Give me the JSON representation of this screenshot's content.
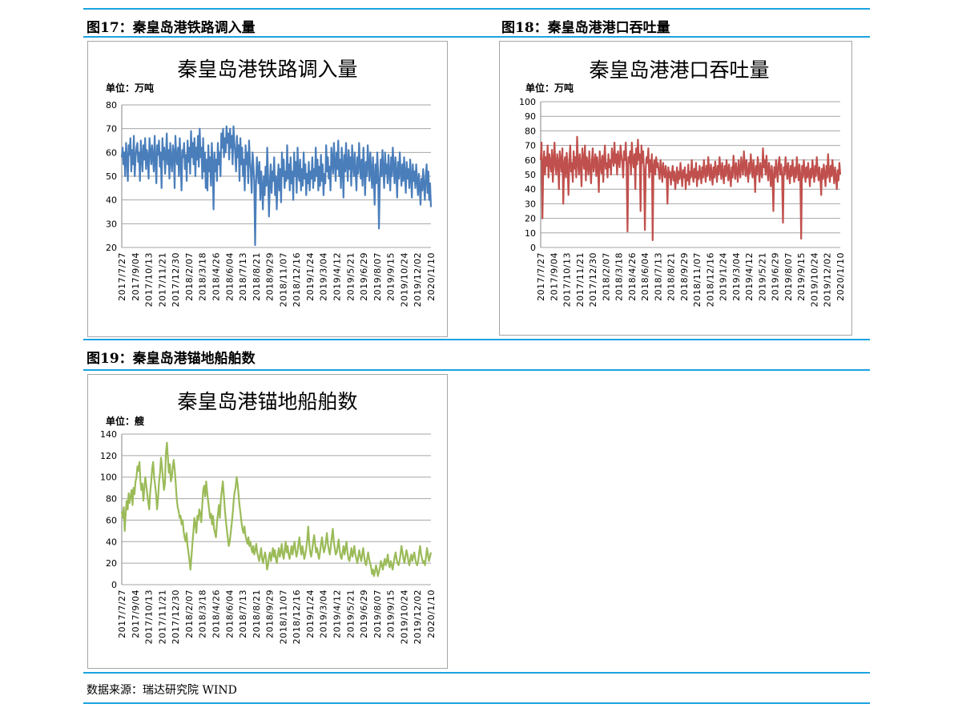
{
  "captions": {
    "fig17": "图17：秦皇岛港铁路调入量",
    "fig18": "图18：秦皇岛港港口吞吐量",
    "fig19": "图19：秦皇岛港锚地船舶数"
  },
  "source": "数据来源：瑞达研究院 WIND",
  "colors": {
    "rule": "#1ba3e0",
    "series1": "#4a7ebb",
    "series2": "#c0504d",
    "series3": "#9bbb59",
    "grid": "#a6a6a6"
  },
  "chart_data": [
    {
      "id": "rail",
      "type": "line",
      "title": "秦皇岛港铁路调入量",
      "unit_label": "单位：万吨",
      "ylim": [
        20,
        80
      ],
      "yticks": [
        20,
        30,
        40,
        50,
        60,
        70,
        80
      ],
      "grid": true,
      "x_tick_labels": [
        "2017/7/27",
        "2017/9/04",
        "2017/10/13",
        "2017/11/21",
        "2017/12/30",
        "2018/2/07",
        "2018/3/18",
        "2018/4/26",
        "2018/6/04",
        "2018/7/13",
        "2018/8/21",
        "2018/9/29",
        "2018/11/07",
        "2018/12/16",
        "2019/1/24",
        "2019/3/04",
        "2019/4/12",
        "2019/5/21",
        "2019/6/29",
        "2019/8/07",
        "2019/9/15",
        "2019/10/24",
        "2019/12/02",
        "2020/1/10"
      ],
      "series": [
        {
          "color": "#4a7ebb",
          "values": [
            58,
            62,
            55,
            60,
            50,
            64,
            57,
            48,
            63,
            59,
            66,
            52,
            61,
            55,
            67,
            50,
            58,
            62,
            64,
            56,
            60,
            48,
            65,
            58,
            52,
            63,
            57,
            66,
            53,
            61,
            58,
            49,
            66,
            60,
            55,
            63,
            58,
            52,
            67,
            56,
            47,
            63,
            59,
            65,
            54,
            60,
            45,
            66,
            57,
            62,
            51,
            58,
            68,
            55,
            61,
            49,
            64,
            57,
            52,
            63,
            60,
            45,
            67,
            58,
            55,
            62,
            50,
            66,
            57,
            44,
            61,
            58,
            64,
            53,
            59,
            48,
            65,
            56,
            62,
            51,
            69,
            58,
            64,
            55,
            66,
            50,
            62,
            57,
            67,
            54,
            70,
            58,
            62,
            49,
            66,
            52,
            60,
            45,
            57,
            44,
            63,
            52,
            58,
            46,
            64,
            55,
            36,
            60,
            52,
            57,
            48,
            64,
            55,
            60,
            50,
            68,
            62,
            70,
            58,
            66,
            60,
            71,
            64,
            68,
            57,
            70,
            62,
            67,
            55,
            71,
            64,
            60,
            52,
            67,
            58,
            63,
            48,
            66,
            55,
            62,
            50,
            57,
            44,
            63,
            55,
            60,
            47,
            65,
            57,
            52,
            43,
            60,
            55,
            48,
            21,
            46,
            58,
            52,
            47,
            56,
            40,
            52,
            45,
            36,
            50,
            42,
            54,
            46,
            62,
            50,
            33,
            47,
            55,
            43,
            52,
            48,
            58,
            42,
            50,
            36,
            47,
            55,
            44,
            53,
            39,
            60,
            50,
            57,
            45,
            52,
            48,
            63,
            49,
            55,
            44,
            58,
            47,
            52,
            40,
            60,
            50,
            56,
            43,
            62,
            51,
            48,
            57,
            44,
            53,
            46,
            60,
            49,
            55,
            42,
            51,
            47,
            56,
            44,
            52,
            49,
            58,
            45,
            53,
            48,
            62,
            50,
            57,
            44,
            54,
            46,
            59,
            48,
            55,
            42,
            51,
            47,
            63,
            52,
            58,
            49,
            54,
            44,
            62,
            57,
            51,
            64,
            55,
            48,
            60,
            53,
            65,
            50,
            57,
            45,
            62,
            55,
            41,
            59,
            52,
            64,
            55,
            48,
            61,
            53,
            58,
            46,
            63,
            55,
            50,
            60,
            52,
            44,
            58,
            51,
            64,
            55,
            49,
            57,
            46,
            62,
            54,
            42,
            56,
            50,
            63,
            55,
            48,
            60,
            52,
            45,
            58,
            50,
            38,
            55,
            47,
            60,
            52,
            28,
            48,
            57,
            50,
            61,
            53,
            45,
            60,
            51,
            55,
            47,
            59,
            52,
            44,
            58,
            50,
            62,
            54,
            47,
            58,
            51,
            41,
            56,
            49,
            60,
            52,
            46,
            55,
            48,
            58,
            50,
            43,
            56,
            49,
            53,
            45,
            57,
            50,
            41,
            55,
            48,
            52,
            45,
            55,
            48,
            42,
            51,
            46,
            38,
            49,
            44,
            53,
            46,
            40,
            50,
            55,
            43,
            52,
            40,
            47,
            37
          ]
        }
      ]
    },
    {
      "id": "throughput",
      "type": "line",
      "title": "秦皇岛港港口吞吐量",
      "unit_label": "单位：万吨",
      "ylim": [
        0,
        100
      ],
      "yticks": [
        0,
        10,
        20,
        30,
        40,
        50,
        60,
        70,
        80,
        90,
        100
      ],
      "grid": true,
      "x_tick_labels": [
        "2017/7/27",
        "2017/9/04",
        "2017/10/13",
        "2017/11/21",
        "2017/12/30",
        "2018/2/07",
        "2018/3/18",
        "2018/4/26",
        "2018/6/04",
        "2018/7/13",
        "2018/8/21",
        "2018/9/29",
        "2018/11/07",
        "2018/12/16",
        "2019/1/24",
        "2019/3/04",
        "2019/4/12",
        "2019/5/21",
        "2019/6/29",
        "2019/8/07",
        "2019/9/15",
        "2019/10/24",
        "2019/12/02",
        "2020/1/10"
      ],
      "series": [
        {
          "color": "#c0504d",
          "values": [
            60,
            72,
            20,
            58,
            66,
            50,
            62,
            56,
            70,
            48,
            64,
            58,
            52,
            67,
            45,
            60,
            72,
            55,
            50,
            64,
            58,
            40,
            66,
            60,
            52,
            68,
            30,
            57,
            62,
            48,
            65,
            55,
            36,
            60,
            70,
            52,
            58,
            45,
            66,
            54,
            62,
            48,
            76,
            58,
            50,
            64,
            56,
            42,
            68,
            60,
            54,
            70,
            46,
            62,
            58,
            50,
            66,
            55,
            44,
            60,
            68,
            52,
            58,
            64,
            49,
            62,
            55,
            38,
            66,
            57,
            51,
            63,
            45,
            60,
            70,
            54,
            58,
            48,
            64,
            55,
            60,
            50,
            68,
            62,
            56,
            72,
            58,
            64,
            50,
            66,
            60,
            55,
            70,
            63,
            58,
            48,
            66,
            60,
            72,
            55,
            11,
            62,
            58,
            66,
            50,
            72,
            60,
            55,
            64,
            40,
            68,
            57,
            74,
            60,
            64,
            25,
            70,
            58,
            66,
            52,
            12,
            55,
            62,
            58,
            68,
            48,
            60,
            52,
            64,
            5,
            56,
            60,
            50,
            62,
            55,
            58,
            52,
            47,
            60,
            54,
            45,
            58,
            52,
            48,
            56,
            50,
            30,
            55,
            48,
            52,
            43,
            50,
            56,
            46,
            52,
            40,
            48,
            55,
            44,
            52,
            47,
            58,
            50,
            42,
            53,
            48,
            55,
            40,
            50,
            46,
            57,
            43,
            52,
            48,
            60,
            50,
            45,
            54,
            48,
            58,
            42,
            52,
            47,
            56,
            50,
            44,
            55,
            48,
            60,
            52,
            45,
            56,
            49,
            62,
            53,
            46,
            57,
            50,
            43,
            55,
            48,
            59,
            52,
            45,
            56,
            50,
            62,
            54,
            47,
            58,
            51,
            44,
            56,
            49,
            60,
            53,
            46,
            57,
            50,
            42,
            55,
            48,
            63,
            55,
            47,
            58,
            52,
            45,
            60,
            53,
            48,
            62,
            55,
            50,
            66,
            57,
            49,
            60,
            52,
            45,
            58,
            51,
            64,
            55,
            48,
            60,
            52,
            38,
            56,
            50,
            62,
            54,
            45,
            58,
            52,
            48,
            68,
            55,
            60,
            50,
            63,
            54,
            46,
            58,
            52,
            42,
            56,
            49,
            25,
            55,
            48,
            60,
            52,
            45,
            58,
            62,
            50,
            57,
            48,
            17,
            55,
            50,
            62,
            54,
            47,
            58,
            51,
            44,
            56,
            49,
            60,
            52,
            45,
            55,
            48,
            62,
            53,
            46,
            57,
            50,
            6,
            56,
            48,
            60,
            52,
            45,
            55,
            48,
            58,
            50,
            42,
            54,
            48,
            60,
            52,
            45,
            56,
            49,
            62,
            53,
            46,
            55,
            48,
            36,
            54,
            47,
            57,
            50,
            42,
            56,
            48,
            64,
            52,
            45,
            56,
            49,
            60,
            52,
            44,
            55,
            48,
            40,
            53,
            46,
            58,
            50
          ]
        }
      ]
    },
    {
      "id": "anchorage",
      "type": "line",
      "title": "秦皇岛港锚地船舶数",
      "unit_label": "单位：艘",
      "ylim": [
        0,
        140
      ],
      "yticks": [
        0,
        20,
        40,
        60,
        80,
        100,
        120,
        140
      ],
      "grid": true,
      "x_tick_labels": [
        "2017/7/27",
        "2017/9/04",
        "2017/10/13",
        "2017/11/21",
        "2017/12/30",
        "2018/2/07",
        "2018/3/18",
        "2018/4/26",
        "2018/6/04",
        "2018/7/13",
        "2018/8/21",
        "2018/9/29",
        "2018/11/07",
        "2018/12/16",
        "2019/1/24",
        "2019/3/04",
        "2019/4/12",
        "2019/5/21",
        "2019/6/29",
        "2019/8/07",
        "2019/9/15",
        "2019/10/24",
        "2019/12/02",
        "2020/1/10"
      ],
      "series": [
        {
          "color": "#9bbb59",
          "values": [
            68,
            62,
            72,
            50,
            66,
            78,
            70,
            85,
            76,
            82,
            88,
            74,
            90,
            84,
            96,
            100,
            110,
            106,
            114,
            96,
            88,
            94,
            78,
            90,
            100,
            92,
            84,
            76,
            70,
            86,
            96,
            108,
            114,
            100,
            92,
            84,
            70,
            80,
            96,
            104,
            118,
            110,
            98,
            88,
            94,
            122,
            132,
            118,
            104,
            112,
            96,
            100,
            110,
            116,
            106,
            94,
            80,
            72,
            68,
            62,
            64,
            56,
            60,
            50,
            44,
            40,
            48,
            36,
            30,
            22,
            14,
            26,
            38,
            50,
            62,
            56,
            48,
            64,
            60,
            70,
            66,
            58,
            74,
            88,
            92,
            82,
            96,
            86,
            78,
            70,
            62,
            66,
            56,
            64,
            52,
            48,
            44,
            58,
            66,
            74,
            62,
            80,
            88,
            96,
            84,
            70,
            60,
            52,
            44,
            36,
            40,
            48,
            56,
            66,
            78,
            86,
            90,
            100,
            94,
            84,
            74,
            66,
            58,
            52,
            48,
            54,
            46,
            42,
            38,
            44,
            36,
            40,
            34,
            30,
            36,
            28,
            32,
            38,
            30,
            26,
            22,
            28,
            34,
            24,
            20,
            26,
            30,
            24,
            14,
            18,
            26,
            30,
            22,
            28,
            34,
            26,
            32,
            24,
            20,
            28,
            34,
            26,
            30,
            38,
            28,
            24,
            32,
            40,
            30,
            36,
            28,
            24,
            30,
            36,
            28,
            34,
            40,
            32,
            26,
            30,
            38,
            44,
            34,
            28,
            36,
            30,
            24,
            28,
            34,
            42,
            54,
            38,
            30,
            26,
            32,
            40,
            46,
            38,
            30,
            34,
            28,
            24,
            30,
            38,
            44,
            36,
            30,
            34,
            40,
            48,
            38,
            32,
            28,
            36,
            44,
            52,
            40,
            34,
            28,
            30,
            36,
            42,
            32,
            26,
            24,
            30,
            36,
            28,
            34,
            40,
            30,
            24,
            22,
            28,
            34,
            26,
            30,
            36,
            28,
            24,
            20,
            26,
            32,
            26,
            22,
            28,
            34,
            26,
            20,
            18,
            24,
            30,
            24,
            20,
            16,
            10,
            14,
            8,
            12,
            18,
            14,
            8,
            12,
            16,
            22,
            18,
            14,
            20,
            24,
            18,
            22,
            28,
            20,
            16,
            22,
            18,
            14,
            20,
            26,
            30,
            24,
            20,
            18,
            22,
            28,
            36,
            30,
            24,
            20,
            26,
            32,
            28,
            22,
            18,
            24,
            28,
            22,
            26,
            30,
            24,
            20,
            18,
            22,
            30,
            36,
            28,
            24,
            20,
            22,
            18,
            26,
            34,
            28,
            22,
            26,
            30
          ]
        }
      ]
    }
  ]
}
